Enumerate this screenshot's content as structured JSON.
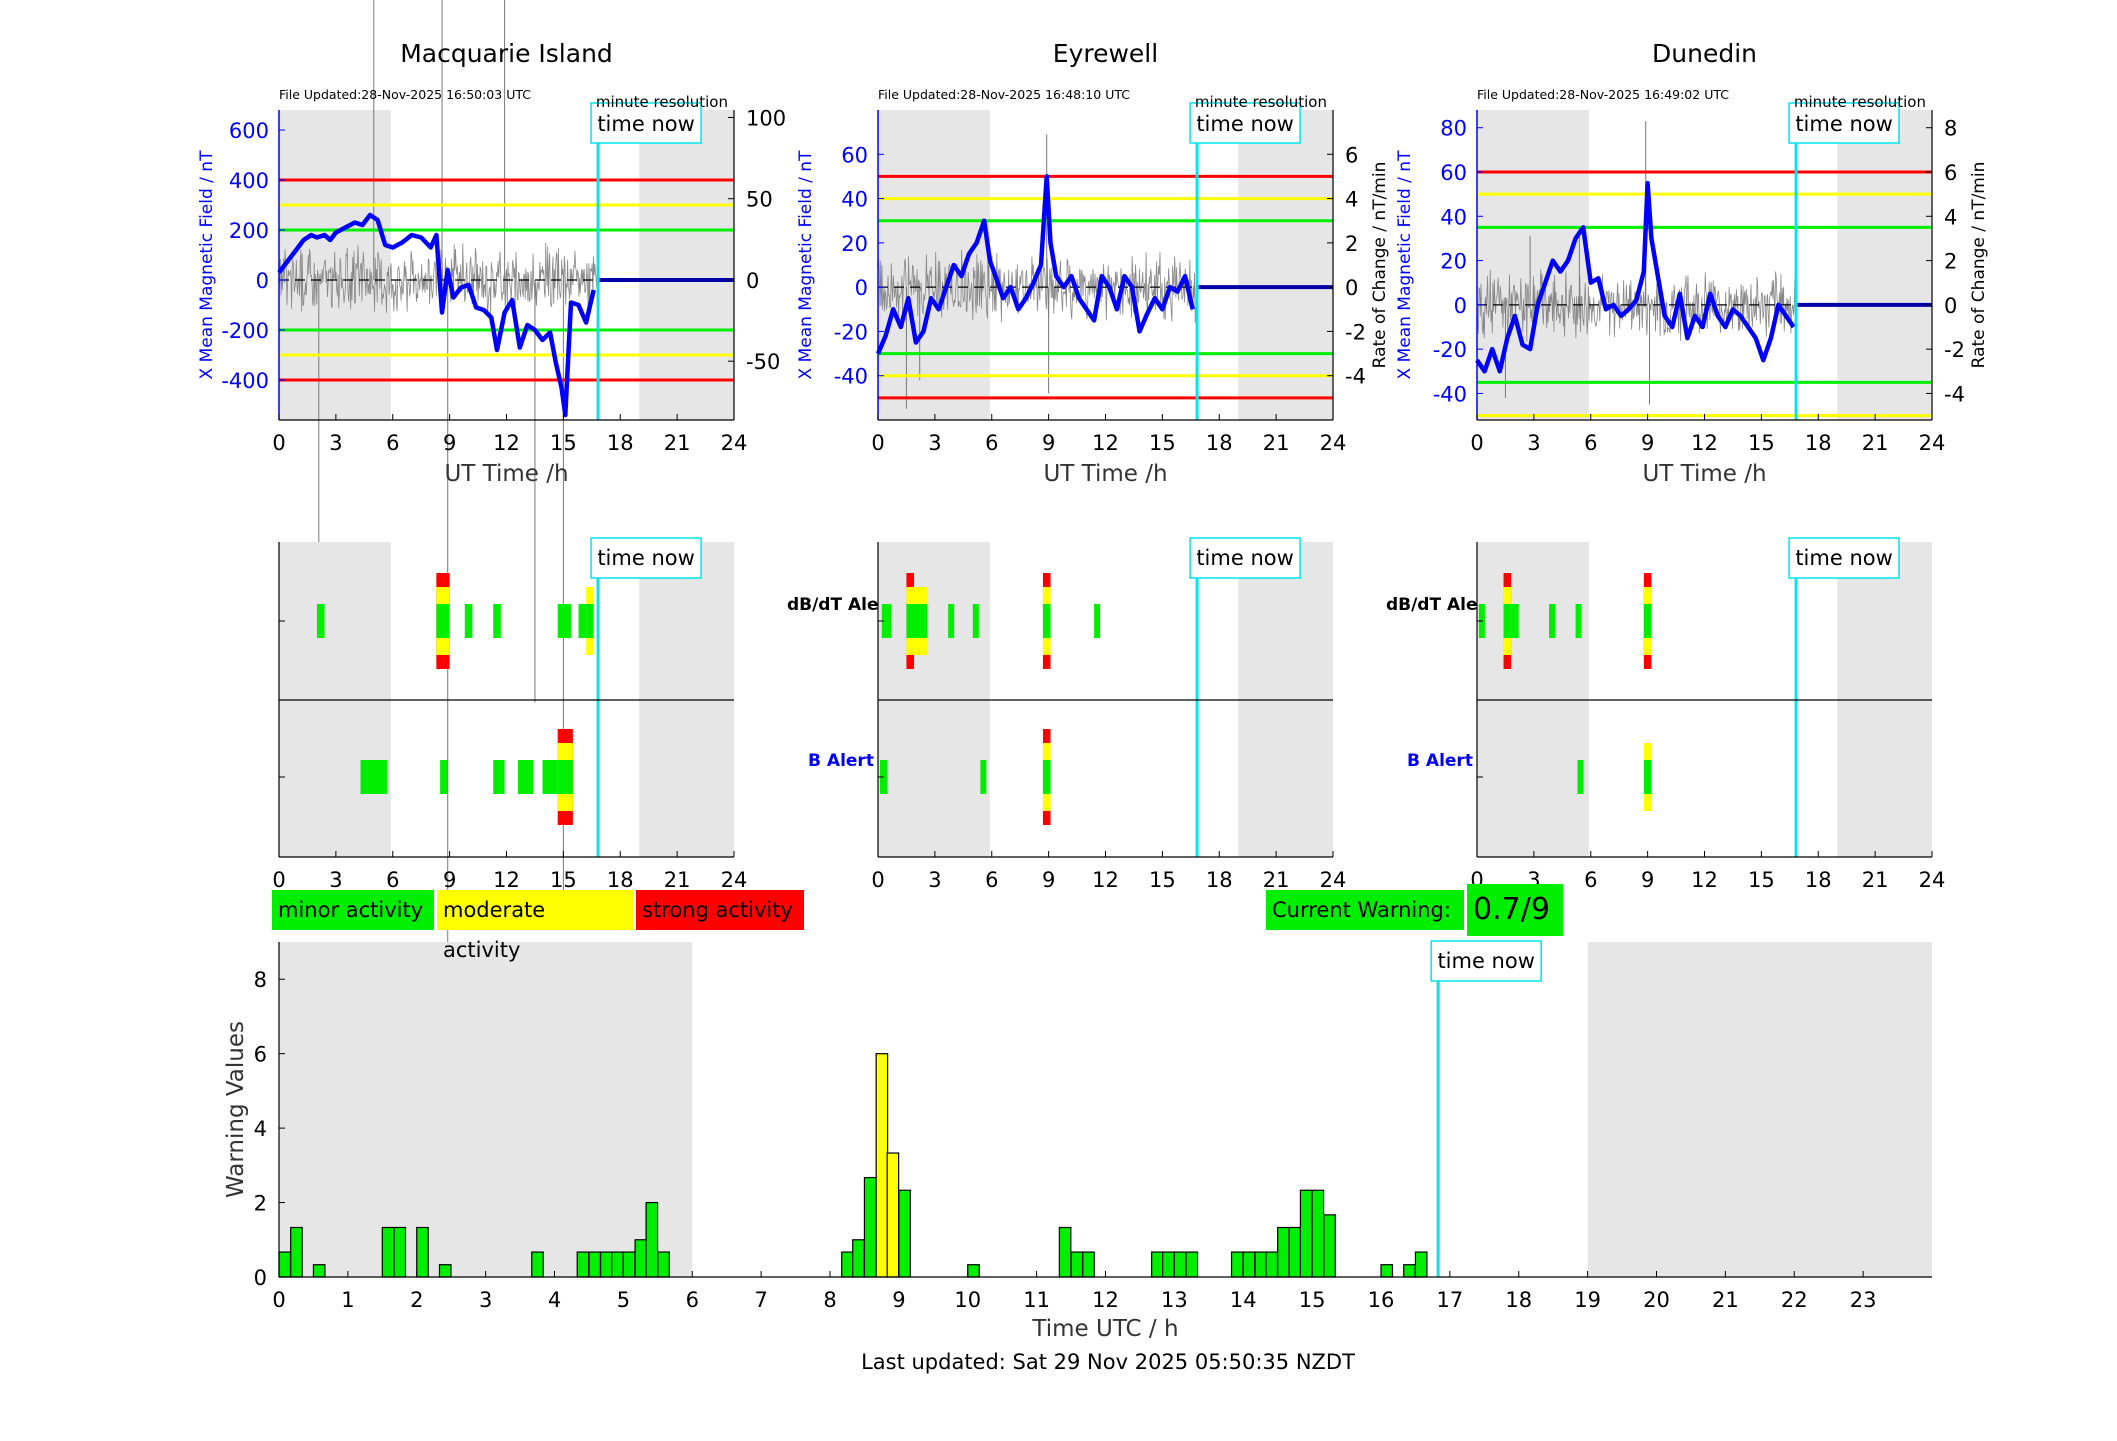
{
  "colors": {
    "minor": "#00ee00",
    "moderate": "#ffff00",
    "strong": "#ff0000",
    "now": "#00e5ee",
    "field": "#0000ff",
    "night": "#e6e6e6"
  },
  "stations": [
    {
      "title": "Macquarie Island",
      "file_updated": "File Updated:28-Nov-2025 16:50:03 UTC",
      "resolution": "minute resolution",
      "time_now_label": "time now",
      "now_hour": 16.83,
      "night": [
        [
          0,
          5.9
        ],
        [
          19.0,
          24
        ]
      ],
      "xlabel": "UT Time /h",
      "ylabel_left": "X Mean Magnetic Field / nT",
      "ylabel_right": "",
      "y_left_range": [
        -560,
        680
      ],
      "y_left_ticks": [
        -400,
        -200,
        0,
        200,
        400,
        600
      ],
      "y_right_range": [
        -86.2,
        104.6
      ],
      "y_right_ticks": [
        -50,
        0,
        50,
        100
      ],
      "thresholds": [
        {
          "value": 400,
          "color": "#ff0000"
        },
        {
          "value": 300,
          "color": "#ffff00"
        },
        {
          "value": 200,
          "color": "#00ee00"
        },
        {
          "value": -200,
          "color": "#00ee00"
        },
        {
          "value": -300,
          "color": "#ffff00"
        },
        {
          "value": -400,
          "color": "#ff0000"
        }
      ],
      "field_trace": [
        [
          0,
          30
        ],
        [
          0.3,
          60
        ],
        [
          0.7,
          100
        ],
        [
          1,
          130
        ],
        [
          1.3,
          160
        ],
        [
          1.7,
          180
        ],
        [
          2,
          170
        ],
        [
          2.4,
          180
        ],
        [
          2.7,
          160
        ],
        [
          3,
          190
        ],
        [
          3.5,
          210
        ],
        [
          4,
          230
        ],
        [
          4.4,
          220
        ],
        [
          4.8,
          260
        ],
        [
          5.2,
          240
        ],
        [
          5.6,
          140
        ],
        [
          6,
          130
        ],
        [
          6.5,
          150
        ],
        [
          7,
          180
        ],
        [
          7.5,
          170
        ],
        [
          8,
          130
        ],
        [
          8.3,
          180
        ],
        [
          8.6,
          -130
        ],
        [
          8.9,
          40
        ],
        [
          9.2,
          -70
        ],
        [
          9.6,
          -30
        ],
        [
          10,
          -20
        ],
        [
          10.4,
          -110
        ],
        [
          10.8,
          -120
        ],
        [
          11.2,
          -150
        ],
        [
          11.5,
          -280
        ],
        [
          11.9,
          -130
        ],
        [
          12.3,
          -80
        ],
        [
          12.7,
          -270
        ],
        [
          13.1,
          -180
        ],
        [
          13.5,
          -200
        ],
        [
          13.9,
          -240
        ],
        [
          14.3,
          -210
        ],
        [
          14.6,
          -330
        ],
        [
          14.9,
          -430
        ],
        [
          15.1,
          -540
        ],
        [
          15.4,
          -90
        ],
        [
          15.8,
          -100
        ],
        [
          16.2,
          -170
        ],
        [
          16.6,
          -40
        ]
      ],
      "field_projection_value": 0,
      "dbdt_spikes": [
        [
          8.6,
          640
        ],
        [
          8.9,
          -520
        ],
        [
          5.0,
          320
        ],
        [
          11.9,
          220
        ],
        [
          13.5,
          -260
        ],
        [
          15.0,
          -380
        ],
        [
          2.1,
          -220
        ]
      ],
      "dbdt_alerts": [
        {
          "start": 2.0,
          "end": 2.4,
          "level": 1
        },
        {
          "start": 8.3,
          "end": 9.0,
          "level": 3
        },
        {
          "start": 9.8,
          "end": 10.2,
          "level": 1
        },
        {
          "start": 11.3,
          "end": 11.7,
          "level": 1
        },
        {
          "start": 14.7,
          "end": 15.4,
          "level": 1
        },
        {
          "start": 15.8,
          "end": 16.2,
          "level": 1
        },
        {
          "start": 16.2,
          "end": 16.6,
          "level": 2
        }
      ],
      "b_alerts": [
        {
          "start": 4.3,
          "end": 5.7,
          "level": 1
        },
        {
          "start": 8.5,
          "end": 8.9,
          "level": 1
        },
        {
          "start": 11.3,
          "end": 11.9,
          "level": 1
        },
        {
          "start": 12.6,
          "end": 13.4,
          "level": 1
        },
        {
          "start": 13.9,
          "end": 14.7,
          "level": 1
        },
        {
          "start": 14.7,
          "end": 15.5,
          "level": 3
        }
      ]
    },
    {
      "title": "Eyrewell",
      "file_updated": "File Updated:28-Nov-2025 16:48:10 UTC",
      "resolution": "minute resolution",
      "time_now_label": "time now",
      "now_hour": 16.83,
      "night": [
        [
          0,
          5.9
        ],
        [
          19.0,
          24
        ]
      ],
      "xlabel": "UT Time /h",
      "ylabel_left": "X Mean Magnetic Field / nT",
      "ylabel_right": "Rate of Change / nT/min",
      "y_left_range": [
        -60,
        80
      ],
      "y_left_ticks": [
        -40,
        -20,
        0,
        20,
        40,
        60
      ],
      "y_right_range": [
        -6,
        8
      ],
      "y_right_ticks": [
        -4,
        -2,
        0,
        2,
        4,
        6
      ],
      "thresholds": [
        {
          "value": 50,
          "color": "#ff0000"
        },
        {
          "value": 40,
          "color": "#ffff00"
        },
        {
          "value": 30,
          "color": "#00ee00"
        },
        {
          "value": -30,
          "color": "#00ee00"
        },
        {
          "value": -40,
          "color": "#ffff00"
        },
        {
          "value": -50,
          "color": "#ff0000"
        }
      ],
      "field_trace": [
        [
          0,
          -30
        ],
        [
          0.4,
          -22
        ],
        [
          0.8,
          -10
        ],
        [
          1.2,
          -18
        ],
        [
          1.6,
          -5
        ],
        [
          2,
          -25
        ],
        [
          2.4,
          -20
        ],
        [
          2.8,
          -5
        ],
        [
          3.2,
          -10
        ],
        [
          3.6,
          0
        ],
        [
          4,
          10
        ],
        [
          4.4,
          5
        ],
        [
          4.8,
          15
        ],
        [
          5.2,
          20
        ],
        [
          5.6,
          30
        ],
        [
          5.9,
          12
        ],
        [
          6.2,
          5
        ],
        [
          6.6,
          -5
        ],
        [
          7,
          0
        ],
        [
          7.4,
          -10
        ],
        [
          7.8,
          -5
        ],
        [
          8.2,
          2
        ],
        [
          8.6,
          10
        ],
        [
          8.9,
          50
        ],
        [
          9.1,
          20
        ],
        [
          9.4,
          5
        ],
        [
          9.8,
          0
        ],
        [
          10.2,
          5
        ],
        [
          10.6,
          -5
        ],
        [
          11,
          -10
        ],
        [
          11.4,
          -15
        ],
        [
          11.8,
          5
        ],
        [
          12.2,
          0
        ],
        [
          12.6,
          -10
        ],
        [
          13,
          5
        ],
        [
          13.4,
          0
        ],
        [
          13.8,
          -20
        ],
        [
          14.2,
          -12
        ],
        [
          14.6,
          -5
        ],
        [
          15,
          -10
        ],
        [
          15.4,
          0
        ],
        [
          15.8,
          -2
        ],
        [
          16.2,
          5
        ],
        [
          16.6,
          -10
        ]
      ],
      "field_projection_value": 0,
      "dbdt_spikes": [
        [
          1.5,
          -5.5
        ],
        [
          8.9,
          6.9
        ],
        [
          9.0,
          -4.8
        ],
        [
          5.8,
          2.5
        ],
        [
          2.2,
          -4.2
        ]
      ],
      "dbdt_alerts": [
        {
          "start": 0.2,
          "end": 0.7,
          "level": 1
        },
        {
          "start": 1.5,
          "end": 1.9,
          "level": 3
        },
        {
          "start": 1.9,
          "end": 2.6,
          "level": 2
        },
        {
          "start": 3.7,
          "end": 4.0,
          "level": 1
        },
        {
          "start": 5.0,
          "end": 5.3,
          "level": 1
        },
        {
          "start": 8.7,
          "end": 9.1,
          "level": 3
        },
        {
          "start": 11.4,
          "end": 11.7,
          "level": 1
        }
      ],
      "b_alerts": [
        {
          "start": 0.1,
          "end": 0.5,
          "level": 1
        },
        {
          "start": 5.4,
          "end": 5.7,
          "level": 1
        },
        {
          "start": 8.7,
          "end": 9.1,
          "level": 3
        }
      ]
    },
    {
      "title": "Dunedin",
      "file_updated": "File Updated:28-Nov-2025 16:49:02 UTC",
      "resolution": "minute resolution",
      "time_now_label": "time now",
      "now_hour": 16.83,
      "night": [
        [
          0,
          5.9
        ],
        [
          19.0,
          24
        ]
      ],
      "xlabel": "UT Time /h",
      "ylabel_left": "X Mean Magnetic Field / nT",
      "ylabel_right": "Rate of Change / nT/min",
      "y_left_range": [
        -52,
        88
      ],
      "y_left_ticks": [
        -40,
        -20,
        0,
        20,
        40,
        60,
        80
      ],
      "y_right_range": [
        -5.2,
        8.8
      ],
      "y_right_ticks": [
        -4,
        -2,
        0,
        2,
        4,
        6,
        8
      ],
      "thresholds": [
        {
          "value": 60,
          "color": "#ff0000"
        },
        {
          "value": 50,
          "color": "#ffff00"
        },
        {
          "value": 35,
          "color": "#00ee00"
        },
        {
          "value": -35,
          "color": "#00ee00"
        },
        {
          "value": -50,
          "color": "#ffff00"
        }
      ],
      "field_trace": [
        [
          0,
          -25
        ],
        [
          0.4,
          -30
        ],
        [
          0.8,
          -20
        ],
        [
          1.2,
          -30
        ],
        [
          1.6,
          -15
        ],
        [
          2,
          -5
        ],
        [
          2.4,
          -18
        ],
        [
          2.8,
          -20
        ],
        [
          3.2,
          0
        ],
        [
          3.6,
          10
        ],
        [
          4,
          20
        ],
        [
          4.4,
          15
        ],
        [
          4.8,
          20
        ],
        [
          5.2,
          30
        ],
        [
          5.6,
          35
        ],
        [
          6,
          10
        ],
        [
          6.4,
          12
        ],
        [
          6.8,
          -2
        ],
        [
          7.2,
          0
        ],
        [
          7.6,
          -5
        ],
        [
          8,
          -2
        ],
        [
          8.4,
          2
        ],
        [
          8.8,
          15
        ],
        [
          9,
          55
        ],
        [
          9.2,
          30
        ],
        [
          9.5,
          15
        ],
        [
          9.9,
          -5
        ],
        [
          10.3,
          -10
        ],
        [
          10.7,
          5
        ],
        [
          11.1,
          -15
        ],
        [
          11.5,
          -5
        ],
        [
          11.9,
          -10
        ],
        [
          12.3,
          5
        ],
        [
          12.7,
          -5
        ],
        [
          13.1,
          -10
        ],
        [
          13.5,
          -2
        ],
        [
          13.9,
          -5
        ],
        [
          14.3,
          -10
        ],
        [
          14.7,
          -15
        ],
        [
          15.1,
          -25
        ],
        [
          15.5,
          -15
        ],
        [
          15.9,
          0
        ],
        [
          16.3,
          -5
        ],
        [
          16.7,
          -10
        ]
      ],
      "field_projection_value": 0,
      "dbdt_spikes": [
        [
          1.5,
          -4.2
        ],
        [
          5.4,
          3.5
        ],
        [
          8.9,
          8.3
        ],
        [
          9.1,
          -4.5
        ],
        [
          2.8,
          3.1
        ]
      ],
      "dbdt_alerts": [
        {
          "start": 0.1,
          "end": 0.4,
          "level": 1
        },
        {
          "start": 1.4,
          "end": 1.8,
          "level": 3
        },
        {
          "start": 1.8,
          "end": 2.2,
          "level": 1
        },
        {
          "start": 3.8,
          "end": 4.1,
          "level": 1
        },
        {
          "start": 5.2,
          "end": 5.5,
          "level": 1
        },
        {
          "start": 8.8,
          "end": 9.2,
          "level": 3
        }
      ],
      "b_alerts": [
        {
          "start": 5.3,
          "end": 5.6,
          "level": 1
        },
        {
          "start": 8.8,
          "end": 9.2,
          "level": 2
        }
      ]
    }
  ],
  "alert_labels": {
    "dbdt": "dB/dT Alert",
    "b": "B Alert"
  },
  "legend": {
    "minor": "minor activity",
    "moderate": "moderate activity",
    "strong": "strong activity"
  },
  "current_warning": {
    "label": "Current Warning:",
    "value": "0.7/9"
  },
  "x_ticks_station": [
    0,
    3,
    6,
    9,
    12,
    15,
    18,
    21,
    24
  ],
  "chart_data": {
    "type": "bar",
    "title": "",
    "xlabel": "Time UTC / h",
    "ylabel": "Warning Values",
    "xlim": [
      0,
      24
    ],
    "ylim": [
      0,
      9
    ],
    "y_ticks": [
      0,
      2,
      4,
      6,
      8
    ],
    "x_ticks": [
      0,
      1,
      2,
      3,
      4,
      5,
      6,
      7,
      8,
      9,
      10,
      11,
      12,
      13,
      14,
      15,
      16,
      17,
      18,
      19,
      20,
      21,
      22,
      23
    ],
    "night": [
      [
        0,
        6
      ],
      [
        19,
        24
      ]
    ],
    "now_hour": 16.83,
    "time_now_label": "time now",
    "bin_width": 0.1667,
    "bars": [
      {
        "x": 0,
        "value": 0.67,
        "level": 1
      },
      {
        "x": 0.17,
        "value": 1.33,
        "level": 1
      },
      {
        "x": 0.5,
        "value": 0.33,
        "level": 1
      },
      {
        "x": 1.5,
        "value": 1.33,
        "level": 1
      },
      {
        "x": 1.67,
        "value": 1.33,
        "level": 1
      },
      {
        "x": 2,
        "value": 1.33,
        "level": 1
      },
      {
        "x": 2.33,
        "value": 0.33,
        "level": 1
      },
      {
        "x": 3.67,
        "value": 0.67,
        "level": 1
      },
      {
        "x": 4.33,
        "value": 0.67,
        "level": 1
      },
      {
        "x": 4.5,
        "value": 0.67,
        "level": 1
      },
      {
        "x": 4.67,
        "value": 0.67,
        "level": 1
      },
      {
        "x": 4.83,
        "value": 0.67,
        "level": 1
      },
      {
        "x": 5,
        "value": 0.67,
        "level": 1
      },
      {
        "x": 5.17,
        "value": 1.0,
        "level": 1
      },
      {
        "x": 5.33,
        "value": 2.0,
        "level": 1
      },
      {
        "x": 5.5,
        "value": 0.67,
        "level": 1
      },
      {
        "x": 8.17,
        "value": 0.67,
        "level": 1
      },
      {
        "x": 8.33,
        "value": 1.0,
        "level": 1
      },
      {
        "x": 8.5,
        "value": 2.67,
        "level": 1
      },
      {
        "x": 8.67,
        "value": 6.0,
        "level": 2
      },
      {
        "x": 8.83,
        "value": 3.33,
        "level": 2
      },
      {
        "x": 9,
        "value": 2.33,
        "level": 1
      },
      {
        "x": 10,
        "value": 0.33,
        "level": 1
      },
      {
        "x": 11.33,
        "value": 1.33,
        "level": 1
      },
      {
        "x": 11.5,
        "value": 0.67,
        "level": 1
      },
      {
        "x": 11.67,
        "value": 0.67,
        "level": 1
      },
      {
        "x": 12.67,
        "value": 0.67,
        "level": 1
      },
      {
        "x": 12.83,
        "value": 0.67,
        "level": 1
      },
      {
        "x": 13,
        "value": 0.67,
        "level": 1
      },
      {
        "x": 13.17,
        "value": 0.67,
        "level": 1
      },
      {
        "x": 13.83,
        "value": 0.67,
        "level": 1
      },
      {
        "x": 14,
        "value": 0.67,
        "level": 1
      },
      {
        "x": 14.17,
        "value": 0.67,
        "level": 1
      },
      {
        "x": 14.33,
        "value": 0.67,
        "level": 1
      },
      {
        "x": 14.5,
        "value": 1.33,
        "level": 1
      },
      {
        "x": 14.67,
        "value": 1.33,
        "level": 1
      },
      {
        "x": 14.83,
        "value": 2.33,
        "level": 1
      },
      {
        "x": 15,
        "value": 2.33,
        "level": 1
      },
      {
        "x": 15.17,
        "value": 1.67,
        "level": 1
      },
      {
        "x": 16,
        "value": 0.33,
        "level": 1
      },
      {
        "x": 16.33,
        "value": 0.33,
        "level": 1
      },
      {
        "x": 16.5,
        "value": 0.67,
        "level": 1
      }
    ]
  },
  "footer": {
    "last_updated": "Last updated: Sat 29 Nov 2025 05:50:35 NZDT"
  }
}
